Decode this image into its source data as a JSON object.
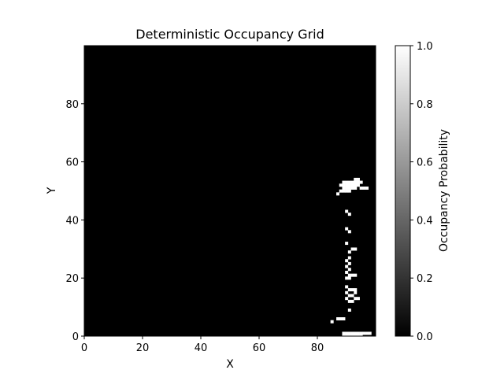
{
  "chart_data": {
    "type": "heatmap",
    "title": "Deterministic Occupancy Grid",
    "xlabel": "X",
    "ylabel": "Y",
    "xlim": [
      0,
      100
    ],
    "ylim": [
      0,
      100
    ],
    "xticks": [
      0,
      20,
      40,
      60,
      80
    ],
    "yticks": [
      0,
      20,
      40,
      60,
      80
    ],
    "colormap": [
      "#000000",
      "#ffffff"
    ],
    "colorbar": {
      "label": "Occupancy Probability",
      "range": [
        0,
        1
      ],
      "ticks": [
        "0.0",
        "0.2",
        "0.4",
        "0.6",
        "0.8",
        "1.0"
      ]
    },
    "background_value": 0,
    "occupied_cells": [
      [
        89,
        0
      ],
      [
        90,
        0
      ],
      [
        91,
        0
      ],
      [
        92,
        0
      ],
      [
        93,
        0
      ],
      [
        94,
        0
      ],
      [
        95,
        0
      ],
      [
        89,
        1
      ],
      [
        90,
        1
      ],
      [
        91,
        1
      ],
      [
        92,
        1
      ],
      [
        93,
        1
      ],
      [
        94,
        1
      ],
      [
        95,
        1
      ],
      [
        96,
        1
      ],
      [
        97,
        1
      ],
      [
        98,
        1
      ],
      [
        85,
        5
      ],
      [
        87,
        6
      ],
      [
        88,
        6
      ],
      [
        89,
        6
      ],
      [
        91,
        9
      ],
      [
        91,
        12
      ],
      [
        92,
        12
      ],
      [
        93,
        13
      ],
      [
        94,
        13
      ],
      [
        90,
        13
      ],
      [
        91,
        14
      ],
      [
        92,
        14
      ],
      [
        93,
        15
      ],
      [
        90,
        15
      ],
      [
        91,
        16
      ],
      [
        92,
        16
      ],
      [
        93,
        16
      ],
      [
        90,
        17
      ],
      [
        90,
        20
      ],
      [
        91,
        20
      ],
      [
        91,
        21
      ],
      [
        92,
        21
      ],
      [
        93,
        21
      ],
      [
        90,
        22
      ],
      [
        91,
        23
      ],
      [
        90,
        24
      ],
      [
        91,
        25
      ],
      [
        90,
        26
      ],
      [
        91,
        27
      ],
      [
        91,
        29
      ],
      [
        92,
        30
      ],
      [
        93,
        30
      ],
      [
        90,
        32
      ],
      [
        91,
        36
      ],
      [
        90,
        37
      ],
      [
        91,
        42
      ],
      [
        90,
        43
      ],
      [
        87,
        49
      ],
      [
        88,
        50
      ],
      [
        89,
        50
      ],
      [
        90,
        50
      ],
      [
        91,
        50
      ],
      [
        89,
        51
      ],
      [
        90,
        51
      ],
      [
        91,
        51
      ],
      [
        92,
        51
      ],
      [
        93,
        51
      ],
      [
        95,
        51
      ],
      [
        96,
        51
      ],
      [
        97,
        51
      ],
      [
        88,
        52
      ],
      [
        89,
        52
      ],
      [
        90,
        52
      ],
      [
        91,
        52
      ],
      [
        92,
        52
      ],
      [
        93,
        52
      ],
      [
        94,
        52
      ],
      [
        89,
        53
      ],
      [
        90,
        53
      ],
      [
        91,
        53
      ],
      [
        92,
        53
      ],
      [
        93,
        53
      ],
      [
        94,
        53
      ],
      [
        95,
        53
      ],
      [
        93,
        54
      ],
      [
        94,
        54
      ]
    ]
  }
}
